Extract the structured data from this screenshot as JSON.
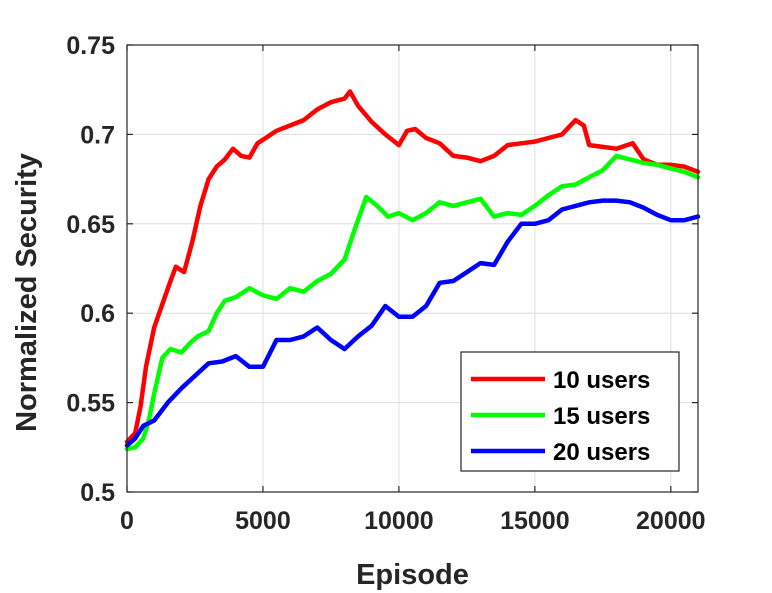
{
  "chart_data": {
    "type": "line",
    "title": "",
    "xlabel": "Episode",
    "ylabel": "Normalized Security",
    "xlim": [
      0,
      21000
    ],
    "ylim": [
      0.5,
      0.75
    ],
    "xticks": [
      0,
      5000,
      10000,
      15000,
      20000
    ],
    "xtick_labels": [
      "0",
      "5000",
      "10000",
      "15000",
      "20000"
    ],
    "yticks": [
      0.5,
      0.55,
      0.6,
      0.65,
      0.7,
      0.75
    ],
    "ytick_labels": [
      "0.5",
      "0.55",
      "0.6",
      "0.65",
      "0.7",
      "0.75"
    ],
    "grid": true,
    "legend_position": "bottom-right",
    "series": [
      {
        "name": "10 users",
        "color": "#ff0000",
        "points": [
          [
            0,
            0.528
          ],
          [
            300,
            0.533
          ],
          [
            500,
            0.548
          ],
          [
            700,
            0.57
          ],
          [
            1000,
            0.592
          ],
          [
            1300,
            0.605
          ],
          [
            1600,
            0.618
          ],
          [
            1800,
            0.626
          ],
          [
            2100,
            0.623
          ],
          [
            2400,
            0.64
          ],
          [
            2700,
            0.66
          ],
          [
            3000,
            0.675
          ],
          [
            3300,
            0.682
          ],
          [
            3600,
            0.686
          ],
          [
            3900,
            0.692
          ],
          [
            4200,
            0.688
          ],
          [
            4500,
            0.687
          ],
          [
            4800,
            0.695
          ],
          [
            5100,
            0.698
          ],
          [
            5500,
            0.702
          ],
          [
            6000,
            0.705
          ],
          [
            6500,
            0.708
          ],
          [
            7000,
            0.714
          ],
          [
            7500,
            0.718
          ],
          [
            8000,
            0.72
          ],
          [
            8200,
            0.724
          ],
          [
            8500,
            0.716
          ],
          [
            9000,
            0.707
          ],
          [
            9500,
            0.7
          ],
          [
            10000,
            0.694
          ],
          [
            10300,
            0.702
          ],
          [
            10600,
            0.703
          ],
          [
            11000,
            0.698
          ],
          [
            11500,
            0.695
          ],
          [
            12000,
            0.688
          ],
          [
            12500,
            0.687
          ],
          [
            13000,
            0.685
          ],
          [
            13500,
            0.688
          ],
          [
            14000,
            0.694
          ],
          [
            14500,
            0.695
          ],
          [
            15000,
            0.696
          ],
          [
            15500,
            0.698
          ],
          [
            16000,
            0.7
          ],
          [
            16500,
            0.708
          ],
          [
            16800,
            0.705
          ],
          [
            17000,
            0.694
          ],
          [
            17500,
            0.693
          ],
          [
            18000,
            0.692
          ],
          [
            18600,
            0.695
          ],
          [
            19000,
            0.686
          ],
          [
            19500,
            0.683
          ],
          [
            20000,
            0.683
          ],
          [
            20500,
            0.682
          ],
          [
            21000,
            0.679
          ]
        ]
      },
      {
        "name": "15 users",
        "color": "#00ff00",
        "points": [
          [
            0,
            0.524
          ],
          [
            300,
            0.525
          ],
          [
            600,
            0.53
          ],
          [
            800,
            0.54
          ],
          [
            1000,
            0.555
          ],
          [
            1300,
            0.575
          ],
          [
            1600,
            0.58
          ],
          [
            2000,
            0.578
          ],
          [
            2300,
            0.583
          ],
          [
            2600,
            0.587
          ],
          [
            3000,
            0.59
          ],
          [
            3300,
            0.6
          ],
          [
            3600,
            0.607
          ],
          [
            4000,
            0.609
          ],
          [
            4500,
            0.614
          ],
          [
            5000,
            0.61
          ],
          [
            5500,
            0.608
          ],
          [
            6000,
            0.614
          ],
          [
            6500,
            0.612
          ],
          [
            7000,
            0.618
          ],
          [
            7500,
            0.622
          ],
          [
            8000,
            0.63
          ],
          [
            8400,
            0.648
          ],
          [
            8800,
            0.665
          ],
          [
            9200,
            0.66
          ],
          [
            9600,
            0.654
          ],
          [
            10000,
            0.656
          ],
          [
            10500,
            0.652
          ],
          [
            11000,
            0.656
          ],
          [
            11500,
            0.662
          ],
          [
            12000,
            0.66
          ],
          [
            12500,
            0.662
          ],
          [
            13000,
            0.664
          ],
          [
            13500,
            0.654
          ],
          [
            14000,
            0.656
          ],
          [
            14500,
            0.655
          ],
          [
            15000,
            0.66
          ],
          [
            15500,
            0.666
          ],
          [
            16000,
            0.671
          ],
          [
            16500,
            0.672
          ],
          [
            17000,
            0.676
          ],
          [
            17500,
            0.68
          ],
          [
            18000,
            0.688
          ],
          [
            18500,
            0.686
          ],
          [
            19000,
            0.684
          ],
          [
            19500,
            0.683
          ],
          [
            20000,
            0.681
          ],
          [
            20500,
            0.679
          ],
          [
            21000,
            0.676
          ]
        ]
      },
      {
        "name": "20 users",
        "color": "#0000ff",
        "points": [
          [
            0,
            0.526
          ],
          [
            300,
            0.53
          ],
          [
            600,
            0.537
          ],
          [
            1000,
            0.54
          ],
          [
            1500,
            0.55
          ],
          [
            2000,
            0.558
          ],
          [
            2500,
            0.565
          ],
          [
            3000,
            0.572
          ],
          [
            3500,
            0.573
          ],
          [
            4000,
            0.576
          ],
          [
            4500,
            0.57
          ],
          [
            5000,
            0.57
          ],
          [
            5500,
            0.585
          ],
          [
            6000,
            0.585
          ],
          [
            6500,
            0.587
          ],
          [
            7000,
            0.592
          ],
          [
            7500,
            0.585
          ],
          [
            8000,
            0.58
          ],
          [
            8500,
            0.587
          ],
          [
            9000,
            0.593
          ],
          [
            9500,
            0.604
          ],
          [
            10000,
            0.598
          ],
          [
            10500,
            0.598
          ],
          [
            11000,
            0.604
          ],
          [
            11500,
            0.617
          ],
          [
            12000,
            0.618
          ],
          [
            12500,
            0.623
          ],
          [
            13000,
            0.628
          ],
          [
            13500,
            0.627
          ],
          [
            14000,
            0.64
          ],
          [
            14500,
            0.65
          ],
          [
            15000,
            0.65
          ],
          [
            15500,
            0.652
          ],
          [
            16000,
            0.658
          ],
          [
            16500,
            0.66
          ],
          [
            17000,
            0.662
          ],
          [
            17500,
            0.663
          ],
          [
            18000,
            0.663
          ],
          [
            18500,
            0.662
          ],
          [
            19000,
            0.659
          ],
          [
            19500,
            0.655
          ],
          [
            20000,
            0.652
          ],
          [
            20500,
            0.652
          ],
          [
            21000,
            0.654
          ]
        ]
      }
    ]
  }
}
